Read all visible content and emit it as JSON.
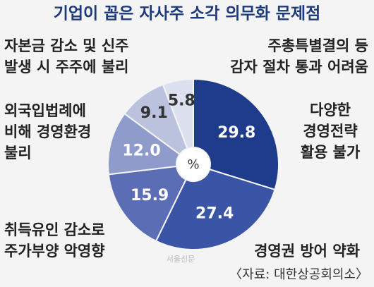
{
  "title": "기업이 꼽은 자사주 소각 의무화 문제점",
  "watermark": "서울신문",
  "source": "〈자료: 대한상공회의소〉",
  "chart_data": {
    "type": "donut",
    "unit": "%",
    "categories": [
      [
        "다양한",
        "경영전략",
        "활용 불가"
      ],
      [
        "경영권 방어 약화"
      ],
      [
        "취득유인 감소로",
        "주가부양 악영향"
      ],
      [
        "외국입법례에",
        "비해 경영환경",
        "불리"
      ],
      [
        "자본금 감소 및 신주",
        "발생 시 주주에 불리"
      ],
      [
        "주총특별결의 등",
        "감자 절차 통과 어려움"
      ]
    ],
    "values": [
      29.8,
      27.4,
      15.9,
      12.0,
      9.1,
      5.8
    ],
    "value_labels": [
      "29.8",
      "27.4",
      "15.9",
      "12.0",
      "9.1",
      "5.8"
    ],
    "colors": [
      "#1f3c8c",
      "#3b55a6",
      "#5b6db4",
      "#8e9bcb",
      "#bac2de",
      "#dde1ef"
    ]
  }
}
